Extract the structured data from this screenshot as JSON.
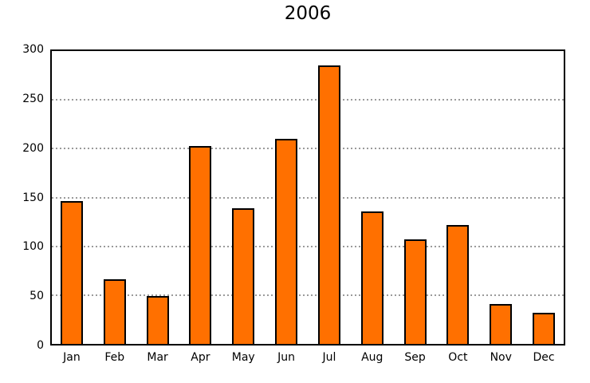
{
  "chart_data": {
    "type": "bar",
    "title": "2006",
    "categories": [
      "Jan",
      "Feb",
      "Mar",
      "Apr",
      "May",
      "Jun",
      "Jul",
      "Aug",
      "Sep",
      "Oct",
      "Nov",
      "Dec"
    ],
    "values": [
      146,
      66,
      49,
      203,
      139,
      210,
      285,
      136,
      107,
      122,
      41,
      32
    ],
    "xlabel": "",
    "ylabel": "",
    "ylim": [
      0,
      300
    ],
    "yticks": [
      0,
      50,
      100,
      150,
      200,
      250,
      300
    ],
    "grid_ticks": [
      50,
      100,
      150,
      200,
      250
    ],
    "grid": "horizontal-dotted",
    "legend_position": "none",
    "colors": {
      "bar_fill": "#FF7000",
      "bar_border": "#000000",
      "grid_line": "#9B9B9B",
      "axis_frame": "#000000",
      "background": "#FFFFFF",
      "text": "#000000"
    }
  }
}
